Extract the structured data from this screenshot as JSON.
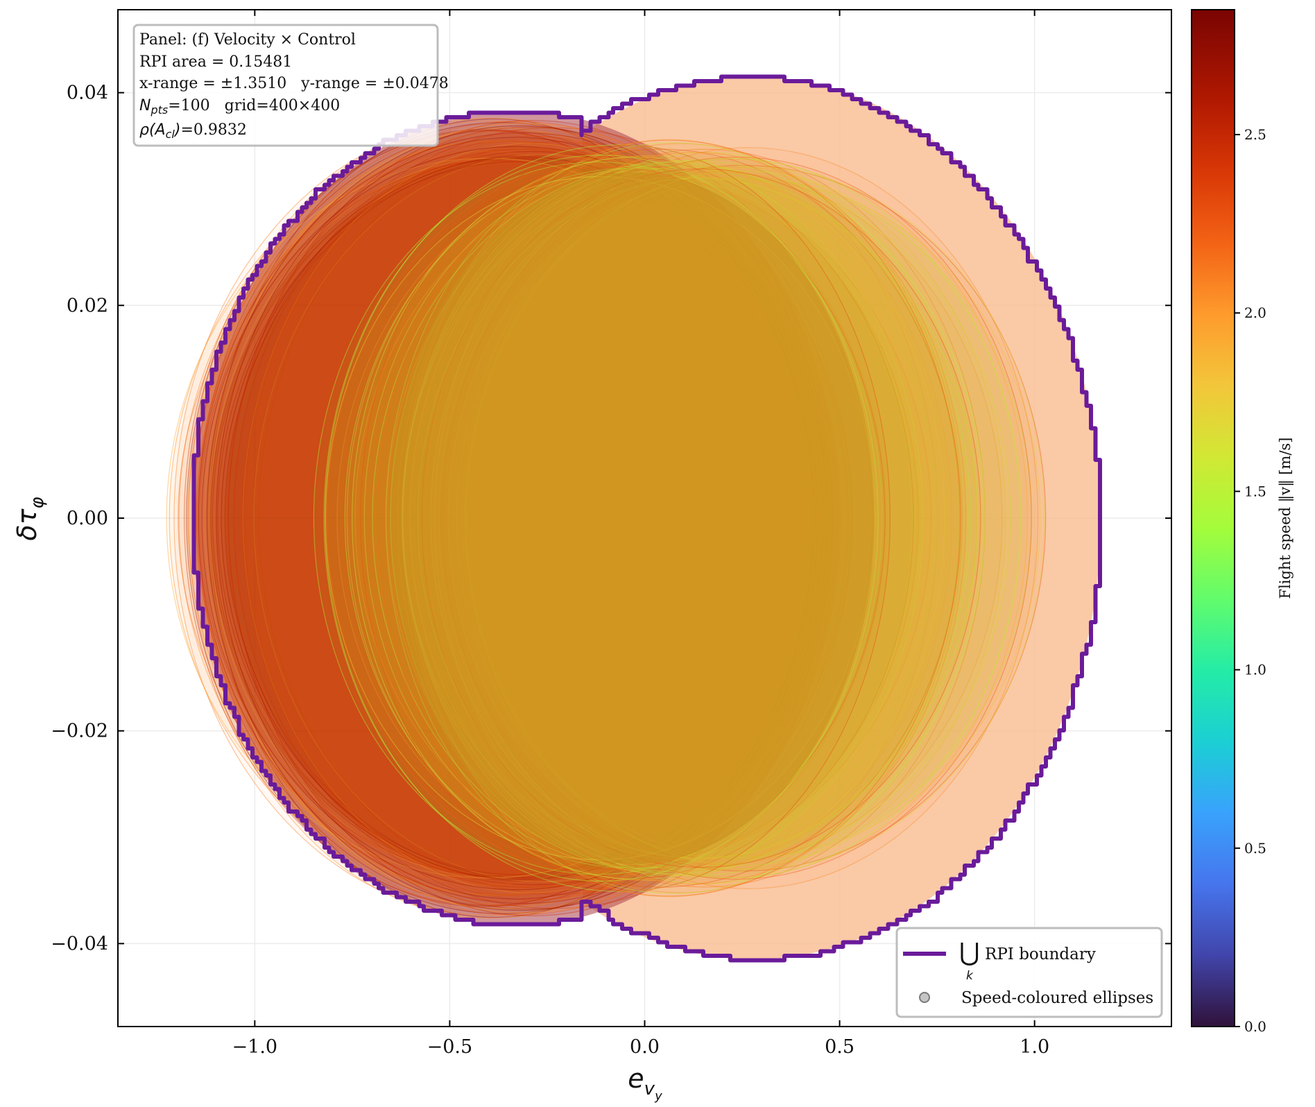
{
  "chart_data": {
    "type": "scatter",
    "subtype": "ellipse-union",
    "xlabel": "e_{v_y}",
    "ylabel": "δτ_φ",
    "xlim": [
      -1.351,
      1.351
    ],
    "ylim": [
      -0.0478,
      0.0478
    ],
    "x_ticks": [
      -1.0,
      -0.5,
      0.0,
      0.5,
      1.0
    ],
    "x_tick_labels": [
      "−1.0",
      "−0.5",
      "0.0",
      "0.5",
      "1.0"
    ],
    "y_ticks": [
      0.04,
      0.02,
      0.0,
      -0.02,
      -0.04
    ],
    "y_tick_labels": [
      "0.04",
      "0.02",
      "0.00",
      "−0.02",
      "−0.04"
    ],
    "grid": true,
    "info_box": {
      "lines": [
        "Panel: (f) Velocity × Control",
        "RPI area = 0.15481",
        "x-range = ±1.3510   y-range = ±0.0478",
        "N_pts=100   grid=400×400",
        "ρ(A_cl)=0.9832"
      ]
    },
    "legend": {
      "placement": "bottom-right",
      "entries": [
        "⋃ RPI boundary",
        "Speed-coloured ellipses"
      ],
      "union_symbol": "⋃",
      "union_sub": "k",
      "boundary_label": "RPI boundary"
    },
    "colorbar": {
      "label": "Flight speed ‖v‖ [m/s]",
      "min": 0.0,
      "max": 2.85,
      "ticks": [
        0.0,
        0.5,
        1.0,
        1.5,
        2.0,
        2.5
      ],
      "tick_labels": [
        "0.0",
        "0.5",
        "1.0",
        "1.5",
        "2.0",
        "2.5"
      ],
      "colormap": "turbo"
    },
    "rpi_boundary": {
      "color": "#6a1b9a",
      "left_lobe": {
        "cx": -0.33,
        "rx": 0.83,
        "ry": 0.0383
      },
      "right_lobe": {
        "cx": 0.28,
        "rx": 0.89,
        "ry": 0.0415
      }
    },
    "ellipse_groups": [
      {
        "speed": 2.35,
        "cx_min": -0.42,
        "cx_max": -0.22,
        "rx": 0.78,
        "ry": 0.036
      },
      {
        "speed": 1.9,
        "cx_min": -0.12,
        "cx_max": 0.3,
        "rx": 0.73,
        "ry": 0.034
      }
    ],
    "colors": {
      "left_fill": "#b0505a",
      "right_fill": "#f9bb90",
      "core": "#c8901e",
      "boundary": "#6a1b9a"
    }
  }
}
